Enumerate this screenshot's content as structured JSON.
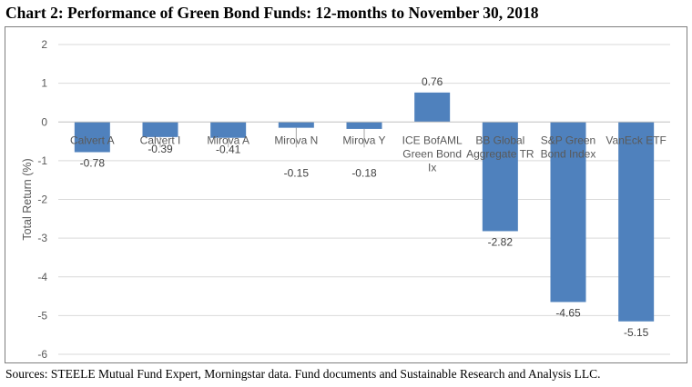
{
  "header": {
    "title": "Chart 2: Performance of Green Bond Funds:  12-months to November 30, 2018"
  },
  "footer": {
    "source": "Sources: STEELE Mutual Fund Expert, Morningstar data. Fund documents and Sustainable Research and Analysis LLC."
  },
  "chart_data": {
    "type": "bar",
    "title": "Chart 2: Performance of Green Bond Funds:  12-months to November 30, 2018",
    "xlabel": "",
    "ylabel": "Total Return (%)",
    "ylim": [
      -6,
      2
    ],
    "yticks": [
      -6,
      -5,
      -4,
      -3,
      -2,
      -1,
      0,
      1,
      2
    ],
    "grid": "horizontal",
    "bar_color": "#4f81bd",
    "categories": [
      [
        "Calvert A"
      ],
      [
        "Calvert I"
      ],
      [
        "Mirova  A"
      ],
      [
        "Mirova N"
      ],
      [
        "Mirova Y"
      ],
      [
        "ICE BofAML",
        "Green Bond",
        "Ix"
      ],
      [
        "BB Global",
        "Aggregate TR"
      ],
      [
        "S&P Green",
        "Bond Index"
      ],
      [
        "VanEck ETF"
      ]
    ],
    "values": [
      -0.78,
      -0.39,
      -0.41,
      -0.15,
      -0.18,
      0.76,
      -2.82,
      -4.65,
      -5.15
    ],
    "data_labels": [
      "-0.78",
      "-0.39",
      "-0.41",
      "-0.15",
      "-0.18",
      "0.76",
      "-2.82",
      "-4.65",
      "-5.15"
    ]
  }
}
